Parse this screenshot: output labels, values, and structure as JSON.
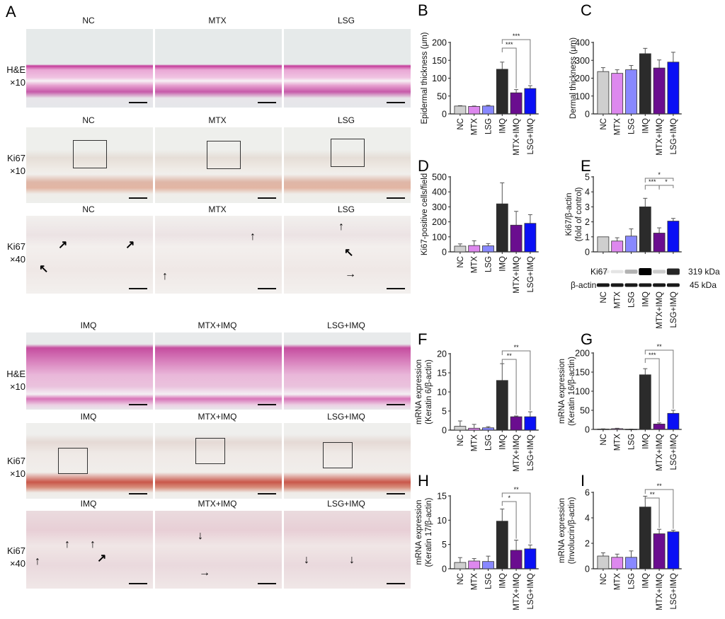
{
  "panel_a": {
    "letter": "A",
    "top_columns": [
      "NC",
      "MTX",
      "LSG"
    ],
    "bottom_columns": [
      "IMQ",
      "MTX+IMQ",
      "LSG+IMQ"
    ],
    "row_labels": [
      {
        "line1": "H&E",
        "line2": "×10"
      },
      {
        "line1": "Ki67",
        "line2": "×10"
      },
      {
        "line1": "Ki67",
        "line2": "×40"
      }
    ]
  },
  "colors": {
    "NC": "#cfcfcf",
    "MTX": "#dd88ee",
    "LSG": "#8888ff",
    "IMQ": "#2b2b2b",
    "MTX+IMQ": "#6a0d8f",
    "LSG+IMQ": "#0a10f5"
  },
  "western_blot": {
    "rows": [
      {
        "label": "Ki67",
        "size": "319 kDa",
        "intensity": [
          0.08,
          0.1,
          0.3,
          1.0,
          0.2,
          0.85
        ]
      },
      {
        "label": "β-actin",
        "size": "45 kDa",
        "intensity": [
          0.9,
          0.9,
          0.9,
          0.9,
          0.9,
          0.9
        ]
      }
    ]
  },
  "chart_data": [
    {
      "letter": "B",
      "type": "bar",
      "categories": [
        "NC",
        "MTX",
        "LSG",
        "IMQ",
        "MTX+IMQ",
        "LSG+IMQ"
      ],
      "values": [
        22,
        21,
        22,
        125,
        59,
        71
      ],
      "errors": [
        1,
        1,
        2,
        20,
        9,
        8
      ],
      "ylabel": [
        "Epidermal thickness (μm)"
      ],
      "ylim": [
        0,
        200
      ],
      "yticks": [
        "0",
        "50",
        "100",
        "150",
        "200"
      ],
      "significance": [
        {
          "from": 3,
          "to": 4,
          "label": "***",
          "level": 1
        },
        {
          "from": 3,
          "to": 5,
          "label": "***",
          "level": 2
        }
      ]
    },
    {
      "letter": "C",
      "type": "bar",
      "categories": [
        "NC",
        "MTX",
        "LSG",
        "IMQ",
        "MTX+IMQ",
        "LSG+IMQ"
      ],
      "values": [
        237,
        227,
        247,
        337,
        257,
        290
      ],
      "errors": [
        22,
        20,
        24,
        30,
        45,
        55
      ],
      "ylabel": [
        "Dermal thickness (μm)"
      ],
      "ylim": [
        0,
        400
      ],
      "yticks": [
        "0",
        "100",
        "200",
        "300",
        "400"
      ],
      "significance": []
    },
    {
      "letter": "D",
      "type": "bar",
      "categories": [
        "NC",
        "MTX",
        "LSG",
        "IMQ",
        "MTX+IMQ",
        "LSG+IMQ"
      ],
      "values": [
        38,
        42,
        40,
        320,
        178,
        190
      ],
      "errors": [
        15,
        32,
        15,
        140,
        92,
        58
      ],
      "ylabel": [
        "Ki67-positive cells/field"
      ],
      "ylim": [
        0,
        500
      ],
      "yticks": [
        "0",
        "100",
        "200",
        "300",
        "400",
        "500"
      ],
      "significance": []
    },
    {
      "letter": "E",
      "type": "bar",
      "categories": [
        "NC",
        "MTX",
        "LSG",
        "IMQ",
        "MTX+IMQ",
        "LSG+IMQ"
      ],
      "values": [
        1.0,
        0.72,
        1.05,
        3.0,
        1.25,
        2.05
      ],
      "errors": [
        0,
        0.22,
        0.48,
        0.57,
        0.35,
        0.18
      ],
      "ylabel": [
        "Ki67/β-actin",
        "(fold of control)"
      ],
      "ylim": [
        0,
        5
      ],
      "yticks": [
        "0",
        "1",
        "2",
        "3",
        "4",
        "5"
      ],
      "significance": [
        {
          "from": 3,
          "to": 4,
          "label": "***",
          "level": 1
        },
        {
          "from": 4,
          "to": 5,
          "label": "*",
          "level": 1
        },
        {
          "from": 3,
          "to": 5,
          "label": "*",
          "level": 2
        }
      ],
      "hide_xlabels": true
    },
    {
      "letter": "F",
      "type": "bar",
      "categories": [
        "NC",
        "MTX",
        "LSG",
        "IMQ",
        "MTX+IMQ",
        "LSG+IMQ"
      ],
      "values": [
        1.0,
        0.5,
        0.6,
        13.0,
        3.5,
        3.5
      ],
      "errors": [
        1.4,
        1.0,
        0.3,
        4.4,
        0.2,
        1.3
      ],
      "ylabel": [
        "mRNA expression",
        "(Keratin 6/β-actin)"
      ],
      "ylim": [
        0,
        20
      ],
      "yticks": [
        "0",
        "5",
        "10",
        "15",
        "20"
      ],
      "significance": [
        {
          "from": 3,
          "to": 4,
          "label": "**",
          "level": 1
        },
        {
          "from": 3,
          "to": 5,
          "label": "**",
          "level": 2
        }
      ]
    },
    {
      "letter": "G",
      "type": "bar",
      "categories": [
        "NC",
        "MTX",
        "LSG",
        "IMQ",
        "MTX+IMQ",
        "LSG+IMQ"
      ],
      "values": [
        1,
        2,
        0.5,
        143,
        14,
        42
      ],
      "errors": [
        0.5,
        1,
        0.3,
        16,
        3,
        8
      ],
      "ylabel": [
        "mRNA expression",
        "(Keratin 16/β-actin)"
      ],
      "ylim": [
        0,
        200
      ],
      "yticks": [
        "0",
        "50",
        "100",
        "150",
        "200"
      ],
      "significance": [
        {
          "from": 3,
          "to": 4,
          "label": "***",
          "level": 1
        },
        {
          "from": 3,
          "to": 5,
          "label": "**",
          "level": 2
        }
      ]
    },
    {
      "letter": "H",
      "type": "bar",
      "categories": [
        "NC",
        "MTX",
        "LSG",
        "IMQ",
        "MTX+IMQ",
        "LSG+IMQ"
      ],
      "values": [
        1.3,
        1.6,
        1.5,
        9.8,
        3.8,
        4.1
      ],
      "errors": [
        1.0,
        0.5,
        1.1,
        2.5,
        2.1,
        0.8
      ],
      "ylabel": [
        "mRNA expression",
        "(Keratin 17/β-actin)"
      ],
      "ylim": [
        0,
        15
      ],
      "yticks": [
        "0",
        "5",
        "10",
        "15"
      ],
      "significance": [
        {
          "from": 3,
          "to": 4,
          "label": "*",
          "level": 1
        },
        {
          "from": 3,
          "to": 5,
          "label": "**",
          "level": 2
        }
      ]
    },
    {
      "letter": "I",
      "type": "bar",
      "categories": [
        "NC",
        "MTX",
        "LSG",
        "IMQ",
        "MTX+IMQ",
        "LSG+IMQ"
      ],
      "values": [
        1.0,
        0.9,
        0.9,
        4.85,
        2.75,
        2.9
      ],
      "errors": [
        0.25,
        0.25,
        0.5,
        0.85,
        0.35,
        0.12
      ],
      "ylabel": [
        "mRNA expression",
        "(Involucrin/β-actin)"
      ],
      "ylim": [
        0,
        6
      ],
      "yticks": [
        "0",
        "2",
        "4",
        "6"
      ],
      "significance": [
        {
          "from": 3,
          "to": 4,
          "label": "**",
          "level": 1
        },
        {
          "from": 3,
          "to": 5,
          "label": "**",
          "level": 2
        }
      ]
    }
  ]
}
